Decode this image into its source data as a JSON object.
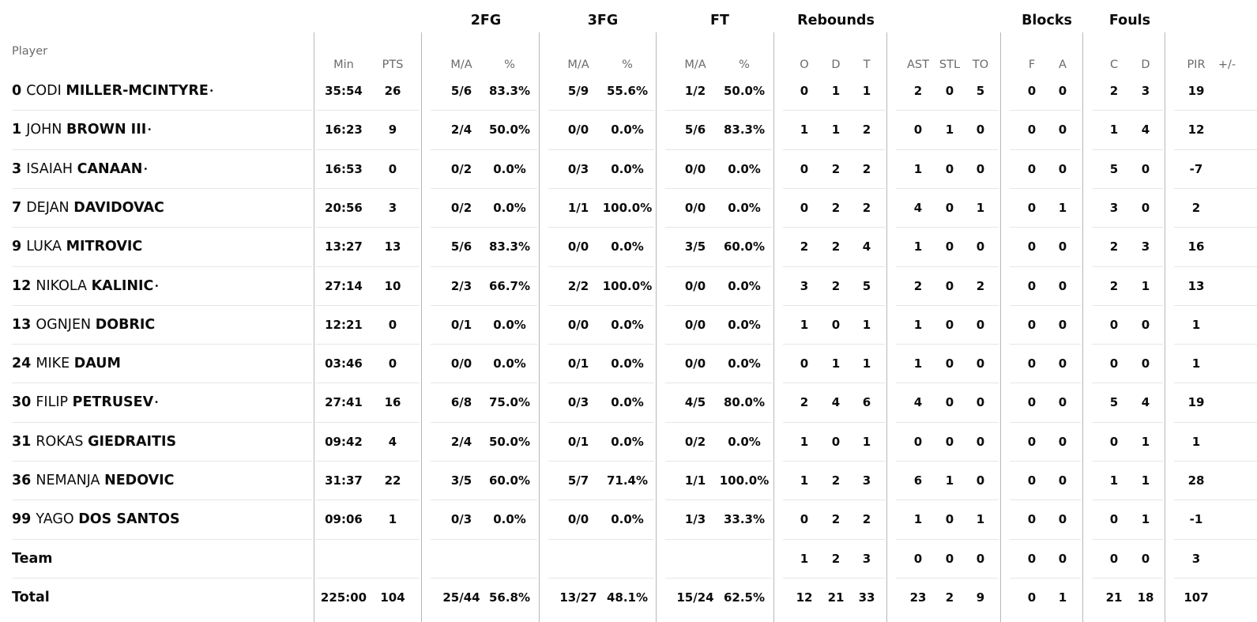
{
  "header": {
    "player_label": "Player",
    "groups": {
      "fg2": "2FG",
      "fg3": "3FG",
      "ft": "FT",
      "reb": "Rebounds",
      "blk": "Blocks",
      "fouls": "Fouls"
    },
    "columns": {
      "min": "Min",
      "pts": "PTS",
      "fg2_ma": "M/A",
      "fg2_pct": "%",
      "fg3_ma": "M/A",
      "fg3_pct": "%",
      "ft_ma": "M/A",
      "ft_pct": "%",
      "reb_o": "O",
      "reb_d": "D",
      "reb_t": "T",
      "ast": "AST",
      "stl": "STL",
      "to": "TO",
      "blk_f": "F",
      "blk_a": "A",
      "foul_c": "C",
      "foul_d": "D",
      "pir": "PIR",
      "pm": "+/-"
    }
  },
  "starter_marker": "•",
  "players": [
    {
      "num": "0",
      "first": "CODI",
      "last": "MILLER-MCINTYRE",
      "starter": true,
      "min": "35:54",
      "pts": "26",
      "fg2_ma": "5/6",
      "fg2_pct": "83.3%",
      "fg3_ma": "5/9",
      "fg3_pct": "55.6%",
      "ft_ma": "1/2",
      "ft_pct": "50.0%",
      "reb_o": "0",
      "reb_d": "1",
      "reb_t": "1",
      "ast": "2",
      "stl": "0",
      "to": "5",
      "blk_f": "0",
      "blk_a": "0",
      "foul_c": "2",
      "foul_d": "3",
      "pir": "19",
      "pm": ""
    },
    {
      "num": "1",
      "first": "JOHN",
      "last": "BROWN III",
      "starter": true,
      "min": "16:23",
      "pts": "9",
      "fg2_ma": "2/4",
      "fg2_pct": "50.0%",
      "fg3_ma": "0/0",
      "fg3_pct": "0.0%",
      "ft_ma": "5/6",
      "ft_pct": "83.3%",
      "reb_o": "1",
      "reb_d": "1",
      "reb_t": "2",
      "ast": "0",
      "stl": "1",
      "to": "0",
      "blk_f": "0",
      "blk_a": "0",
      "foul_c": "1",
      "foul_d": "4",
      "pir": "12",
      "pm": ""
    },
    {
      "num": "3",
      "first": "ISAIAH",
      "last": "CANAAN",
      "starter": true,
      "min": "16:53",
      "pts": "0",
      "fg2_ma": "0/2",
      "fg2_pct": "0.0%",
      "fg3_ma": "0/3",
      "fg3_pct": "0.0%",
      "ft_ma": "0/0",
      "ft_pct": "0.0%",
      "reb_o": "0",
      "reb_d": "2",
      "reb_t": "2",
      "ast": "1",
      "stl": "0",
      "to": "0",
      "blk_f": "0",
      "blk_a": "0",
      "foul_c": "5",
      "foul_d": "0",
      "pir": "-7",
      "pm": ""
    },
    {
      "num": "7",
      "first": "DEJAN",
      "last": "DAVIDOVAC",
      "starter": false,
      "min": "20:56",
      "pts": "3",
      "fg2_ma": "0/2",
      "fg2_pct": "0.0%",
      "fg3_ma": "1/1",
      "fg3_pct": "100.0%",
      "ft_ma": "0/0",
      "ft_pct": "0.0%",
      "reb_o": "0",
      "reb_d": "2",
      "reb_t": "2",
      "ast": "4",
      "stl": "0",
      "to": "1",
      "blk_f": "0",
      "blk_a": "1",
      "foul_c": "3",
      "foul_d": "0",
      "pir": "2",
      "pm": ""
    },
    {
      "num": "9",
      "first": "LUKA",
      "last": "MITROVIC",
      "starter": false,
      "min": "13:27",
      "pts": "13",
      "fg2_ma": "5/6",
      "fg2_pct": "83.3%",
      "fg3_ma": "0/0",
      "fg3_pct": "0.0%",
      "ft_ma": "3/5",
      "ft_pct": "60.0%",
      "reb_o": "2",
      "reb_d": "2",
      "reb_t": "4",
      "ast": "1",
      "stl": "0",
      "to": "0",
      "blk_f": "0",
      "blk_a": "0",
      "foul_c": "2",
      "foul_d": "3",
      "pir": "16",
      "pm": ""
    },
    {
      "num": "12",
      "first": "NIKOLA",
      "last": "KALINIC",
      "starter": true,
      "min": "27:14",
      "pts": "10",
      "fg2_ma": "2/3",
      "fg2_pct": "66.7%",
      "fg3_ma": "2/2",
      "fg3_pct": "100.0%",
      "ft_ma": "0/0",
      "ft_pct": "0.0%",
      "reb_o": "3",
      "reb_d": "2",
      "reb_t": "5",
      "ast": "2",
      "stl": "0",
      "to": "2",
      "blk_f": "0",
      "blk_a": "0",
      "foul_c": "2",
      "foul_d": "1",
      "pir": "13",
      "pm": ""
    },
    {
      "num": "13",
      "first": "OGNJEN",
      "last": "DOBRIC",
      "starter": false,
      "min": "12:21",
      "pts": "0",
      "fg2_ma": "0/1",
      "fg2_pct": "0.0%",
      "fg3_ma": "0/0",
      "fg3_pct": "0.0%",
      "ft_ma": "0/0",
      "ft_pct": "0.0%",
      "reb_o": "1",
      "reb_d": "0",
      "reb_t": "1",
      "ast": "1",
      "stl": "0",
      "to": "0",
      "blk_f": "0",
      "blk_a": "0",
      "foul_c": "0",
      "foul_d": "0",
      "pir": "1",
      "pm": ""
    },
    {
      "num": "24",
      "first": "MIKE",
      "last": "DAUM",
      "starter": false,
      "min": "03:46",
      "pts": "0",
      "fg2_ma": "0/0",
      "fg2_pct": "0.0%",
      "fg3_ma": "0/1",
      "fg3_pct": "0.0%",
      "ft_ma": "0/0",
      "ft_pct": "0.0%",
      "reb_o": "0",
      "reb_d": "1",
      "reb_t": "1",
      "ast": "1",
      "stl": "0",
      "to": "0",
      "blk_f": "0",
      "blk_a": "0",
      "foul_c": "0",
      "foul_d": "0",
      "pir": "1",
      "pm": ""
    },
    {
      "num": "30",
      "first": "FILIP",
      "last": "PETRUSEV",
      "starter": true,
      "min": "27:41",
      "pts": "16",
      "fg2_ma": "6/8",
      "fg2_pct": "75.0%",
      "fg3_ma": "0/3",
      "fg3_pct": "0.0%",
      "ft_ma": "4/5",
      "ft_pct": "80.0%",
      "reb_o": "2",
      "reb_d": "4",
      "reb_t": "6",
      "ast": "4",
      "stl": "0",
      "to": "0",
      "blk_f": "0",
      "blk_a": "0",
      "foul_c": "5",
      "foul_d": "4",
      "pir": "19",
      "pm": ""
    },
    {
      "num": "31",
      "first": "ROKAS",
      "last": "GIEDRAITIS",
      "starter": false,
      "min": "09:42",
      "pts": "4",
      "fg2_ma": "2/4",
      "fg2_pct": "50.0%",
      "fg3_ma": "0/1",
      "fg3_pct": "0.0%",
      "ft_ma": "0/2",
      "ft_pct": "0.0%",
      "reb_o": "1",
      "reb_d": "0",
      "reb_t": "1",
      "ast": "0",
      "stl": "0",
      "to": "0",
      "blk_f": "0",
      "blk_a": "0",
      "foul_c": "0",
      "foul_d": "1",
      "pir": "1",
      "pm": ""
    },
    {
      "num": "36",
      "first": "NEMANJA",
      "last": "NEDOVIC",
      "starter": false,
      "min": "31:37",
      "pts": "22",
      "fg2_ma": "3/5",
      "fg2_pct": "60.0%",
      "fg3_ma": "5/7",
      "fg3_pct": "71.4%",
      "ft_ma": "1/1",
      "ft_pct": "100.0%",
      "reb_o": "1",
      "reb_d": "2",
      "reb_t": "3",
      "ast": "6",
      "stl": "1",
      "to": "0",
      "blk_f": "0",
      "blk_a": "0",
      "foul_c": "1",
      "foul_d": "1",
      "pir": "28",
      "pm": ""
    },
    {
      "num": "99",
      "first": "YAGO",
      "last": "DOS SANTOS",
      "starter": false,
      "min": "09:06",
      "pts": "1",
      "fg2_ma": "0/3",
      "fg2_pct": "0.0%",
      "fg3_ma": "0/0",
      "fg3_pct": "0.0%",
      "ft_ma": "1/3",
      "ft_pct": "33.3%",
      "reb_o": "0",
      "reb_d": "2",
      "reb_t": "2",
      "ast": "1",
      "stl": "0",
      "to": "1",
      "blk_f": "0",
      "blk_a": "0",
      "foul_c": "0",
      "foul_d": "1",
      "pir": "-1",
      "pm": ""
    }
  ],
  "team": {
    "label": "Team",
    "min": "",
    "pts": "",
    "fg2_ma": "",
    "fg2_pct": "",
    "fg3_ma": "",
    "fg3_pct": "",
    "ft_ma": "",
    "ft_pct": "",
    "reb_o": "1",
    "reb_d": "2",
    "reb_t": "3",
    "ast": "0",
    "stl": "0",
    "to": "0",
    "blk_f": "0",
    "blk_a": "0",
    "foul_c": "0",
    "foul_d": "0",
    "pir": "3",
    "pm": ""
  },
  "total": {
    "label": "Total",
    "min": "225:00",
    "pts": "104",
    "fg2_ma": "25/44",
    "fg2_pct": "56.8%",
    "fg3_ma": "13/27",
    "fg3_pct": "48.1%",
    "ft_ma": "15/24",
    "ft_pct": "62.5%",
    "reb_o": "12",
    "reb_d": "21",
    "reb_t": "33",
    "ast": "23",
    "stl": "2",
    "to": "9",
    "blk_f": "0",
    "blk_a": "1",
    "foul_c": "21",
    "foul_d": "18",
    "pir": "107",
    "pm": ""
  }
}
